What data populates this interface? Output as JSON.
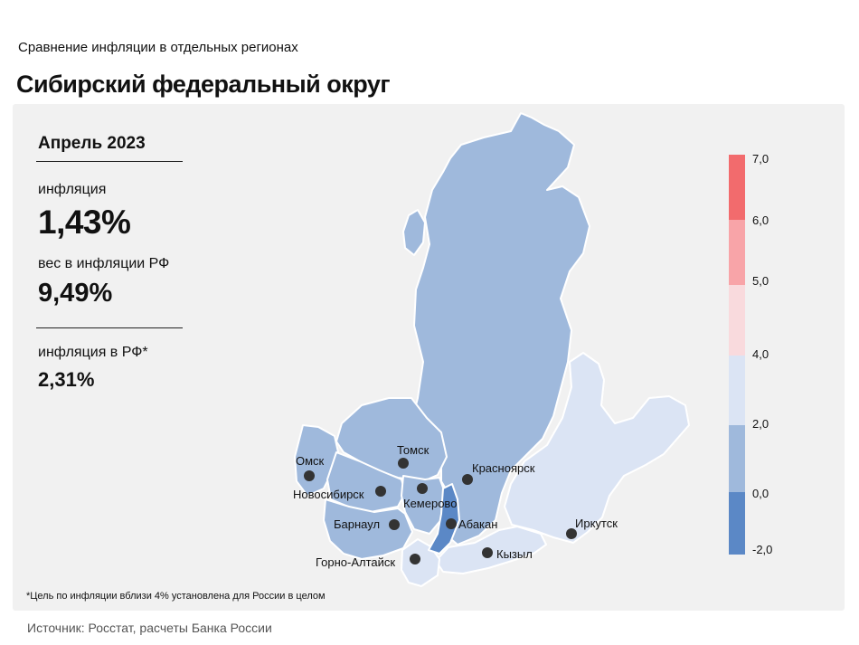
{
  "header": {
    "subtitle": "Сравнение инфляции в отдельных регионах",
    "title": "Сибирский федеральный округ"
  },
  "summary": {
    "period": "Апрель 2023",
    "inflation_label": "инфляция",
    "inflation_value": "1,43%",
    "weight_label": "вес в инфляции РФ",
    "weight_value": "9,49%",
    "rf_label": "инфляция в РФ*",
    "rf_value": "2,31%"
  },
  "footnote": "*Цель по инфляции вблизи 4% установлена для России в целом",
  "source": "Источник: Росстат, расчеты Банка России",
  "colors": {
    "panel_bg": "#f1f1f1",
    "bin_below_0": "#5b88c6",
    "bin_0_2": "#9fb9dc",
    "bin_2_4": "#dbe4f4",
    "bin_4_5": "#f9dadd",
    "bin_5_6": "#f8a4a8",
    "bin_6_7": "#f26b6d"
  },
  "legend": {
    "ticks": [
      "7,0",
      "6,0",
      "5,0",
      "4,0",
      "2,0",
      "0,0",
      "-2,0"
    ],
    "bins": [
      {
        "from": 6.0,
        "to": 7.0,
        "color": "#f26b6d"
      },
      {
        "from": 5.0,
        "to": 6.0,
        "color": "#f8a4a8"
      },
      {
        "from": 4.0,
        "to": 5.0,
        "color": "#f9dadd"
      },
      {
        "from": 2.0,
        "to": 4.0,
        "color": "#dbe4f4"
      },
      {
        "from": 0.0,
        "to": 2.0,
        "color": "#9fb9dc"
      },
      {
        "from": -2.0,
        "to": 0.0,
        "color": "#5b88c6"
      }
    ]
  },
  "cities": [
    {
      "name": "Томск",
      "bin": "0-2"
    },
    {
      "name": "Омск",
      "bin": "0-2"
    },
    {
      "name": "Красноярск",
      "bin": "0-2"
    },
    {
      "name": "Новосибирск",
      "bin": "0-2"
    },
    {
      "name": "Кемерово",
      "bin": "0-2"
    },
    {
      "name": "Барнаул",
      "bin": "0-2"
    },
    {
      "name": "Абакан",
      "bin": "<0"
    },
    {
      "name": "Иркутск",
      "bin": "2-4"
    },
    {
      "name": "Кызыл",
      "bin": "2-4"
    },
    {
      "name": "Горно-Алтайск",
      "bin": "2-4"
    }
  ]
}
